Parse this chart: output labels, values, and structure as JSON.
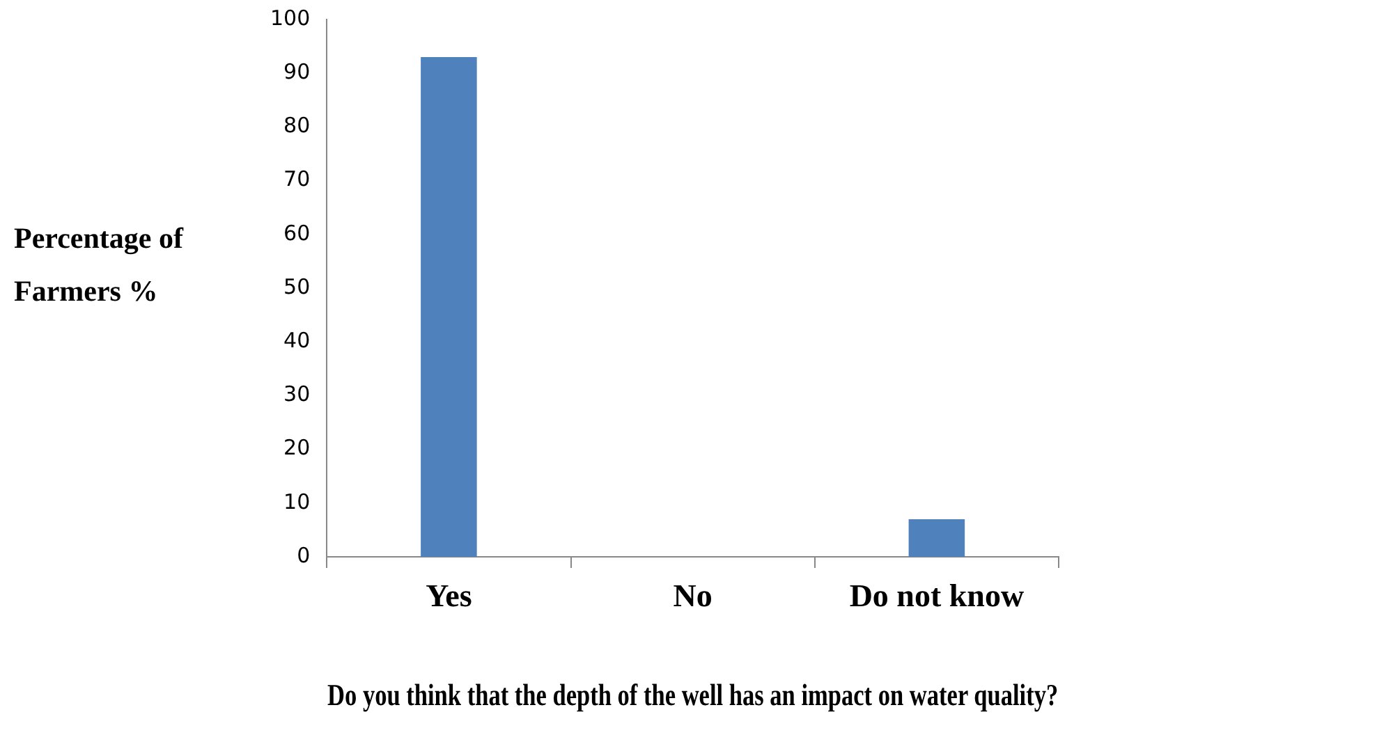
{
  "chart_data": {
    "type": "bar",
    "xlabel": "Do you think that the depth of the well has an impact on water quality?",
    "ylabel": "Percentage of Farmers %",
    "categories": [
      "Yes",
      "No",
      "Do not know"
    ],
    "values": [
      93,
      0,
      7
    ],
    "color": "#4f81bd",
    "ylim": [
      0,
      100
    ],
    "yticks": [
      0,
      10,
      20,
      30,
      40,
      50,
      60,
      70,
      80,
      90,
      100
    ],
    "grid": false,
    "legend": false
  }
}
